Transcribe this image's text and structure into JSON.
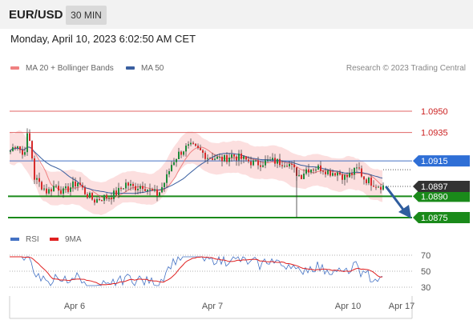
{
  "header": {
    "symbol": "EUR/USD",
    "timeframe": "30 MIN"
  },
  "datetime": "Monday, April 10, 2023 6:02:50 AM CET",
  "legend": {
    "ma20": {
      "label": "MA 20 + Bollinger Bands",
      "color": "#f08080"
    },
    "ma50": {
      "label": "MA 50",
      "color": "#3a5fa0"
    }
  },
  "copyright": "Research © 2023 Trading Central",
  "colors": {
    "up": "#1f8b3a",
    "down": "#d62b2b",
    "resistance": "#e06666",
    "pivot": "#4472c4",
    "support": "#1a8a1a",
    "band": "#fbd4d4",
    "arrow": "#2f5d9e",
    "last": "#333333"
  },
  "chart_data": [
    {
      "type": "candlestick",
      "title": "",
      "x_tick_labels": [
        "Apr 6",
        "Apr 7",
        "Apr 10",
        "Apr 17"
      ],
      "ylim": [
        1.0868,
        1.0975
      ],
      "indicators": [
        "MA 20 + Bollinger Bands",
        "MA 50"
      ],
      "levels": [
        {
          "name": "resistance-2",
          "value": 1.095,
          "label": "1.0950",
          "kind": "resistance"
        },
        {
          "name": "resistance-1",
          "value": 1.0935,
          "label": "1.0935",
          "kind": "resistance"
        },
        {
          "name": "pivot",
          "value": 1.0915,
          "label": "1.0915",
          "kind": "pivot"
        },
        {
          "name": "support-1",
          "value": 1.089,
          "label": "1.0890",
          "kind": "support"
        },
        {
          "name": "support-2",
          "value": 1.0875,
          "label": "1.0875",
          "kind": "support"
        }
      ],
      "last_price": {
        "value": 1.0897,
        "label": "1.0897"
      },
      "forecast": "bearish: decline from 1.0897 toward 1.0875"
    },
    {
      "type": "line",
      "title": "",
      "series": [
        {
          "name": "RSI",
          "color": "#4472c4"
        },
        {
          "name": "9MA",
          "color": "#e02020"
        }
      ],
      "y_tick_labels": [
        "70",
        "50",
        "30"
      ],
      "y_ticks": [
        70,
        50,
        30
      ],
      "ylim": [
        20,
        80
      ]
    }
  ]
}
